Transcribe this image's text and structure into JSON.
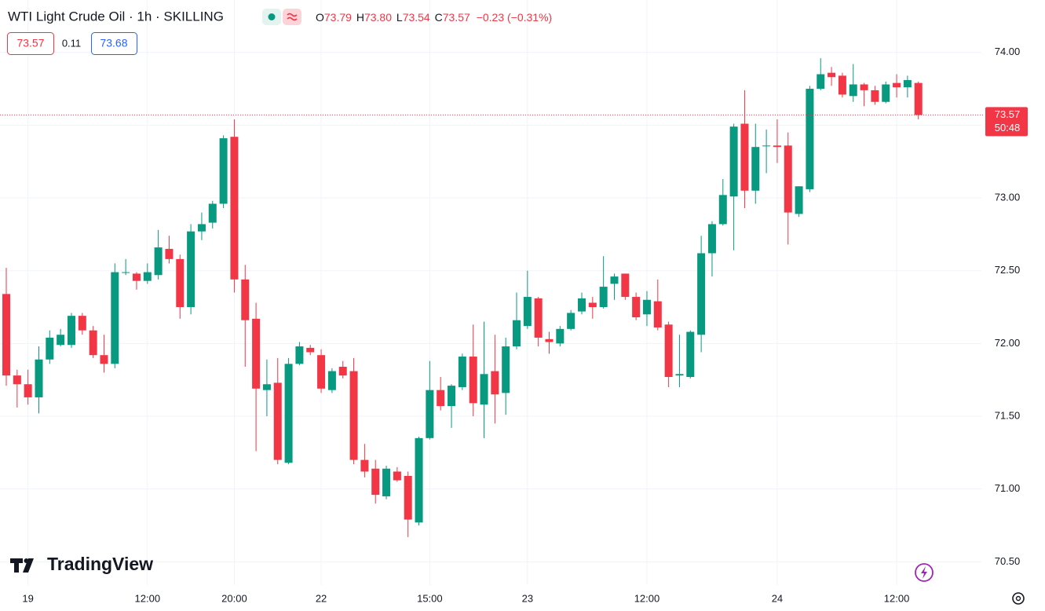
{
  "chart_data": {
    "type": "candlestick",
    "title": "WTI Light Crude Oil · 1h · SKILLING",
    "ohlc_legend": [
      {
        "label": "O",
        "value": "73.79"
      },
      {
        "label": "H",
        "value": "73.80"
      },
      {
        "label": "L",
        "value": "73.54"
      },
      {
        "label": "C",
        "value": "73.57"
      }
    ],
    "change": "−0.23 (−0.31%)",
    "bid": "73.57",
    "spread": "0.11",
    "ask": "73.68",
    "last_price": 73.57,
    "countdown": "50:48",
    "up_color": "#089981",
    "down_color": "#f23645",
    "categories": [
      null,
      null,
      "19",
      null,
      null,
      null,
      null,
      null,
      null,
      null,
      null,
      null,
      null,
      "12:00",
      null,
      null,
      null,
      null,
      null,
      null,
      null,
      "20:00",
      null,
      null,
      null,
      null,
      null,
      null,
      null,
      "22",
      null,
      null,
      null,
      null,
      null,
      null,
      null,
      null,
      null,
      "15:00",
      null,
      null,
      null,
      null,
      null,
      null,
      null,
      null,
      "23",
      null,
      null,
      null,
      null,
      null,
      null,
      null,
      null,
      null,
      null,
      "12:00",
      null,
      null,
      null,
      null,
      null,
      null,
      null,
      null,
      null,
      null,
      null,
      "24",
      null,
      null,
      null,
      null,
      null,
      null,
      null,
      null,
      null,
      null,
      "12:00",
      null,
      null
    ],
    "open": [
      72.34,
      71.78,
      71.72,
      71.63,
      71.89,
      71.99,
      71.99,
      72.19,
      72.09,
      71.92,
      71.86,
      72.49,
      72.48,
      72.43,
      72.47,
      72.65,
      72.58,
      72.25,
      72.77,
      72.83,
      72.96,
      73.42,
      72.44,
      72.17,
      71.68,
      71.73,
      71.18,
      71.86,
      71.97,
      71.92,
      71.68,
      71.84,
      71.81,
      71.2,
      71.14,
      70.95,
      71.12,
      71.09,
      70.77,
      71.35,
      71.68,
      71.57,
      71.7,
      71.91,
      71.58,
      71.81,
      71.66,
      71.98,
      72.12,
      72.31,
      72.03,
      72.0,
      72.1,
      72.22,
      72.28,
      72.25,
      72.41,
      72.48,
      72.32,
      72.2,
      72.29,
      72.13,
      71.78,
      71.77,
      72.06,
      72.62,
      72.82,
      73.01,
      73.51,
      73.05,
      73.36,
      73.36,
      73.36,
      72.89,
      73.06,
      73.75,
      73.86,
      73.84,
      73.7,
      73.78,
      73.74,
      73.66,
      73.79,
      73.76,
      73.79
    ],
    "high": [
      72.52,
      71.82,
      71.82,
      71.98,
      72.09,
      72.1,
      72.21,
      72.21,
      72.12,
      72.06,
      72.55,
      72.58,
      72.49,
      72.55,
      72.78,
      72.74,
      72.61,
      72.82,
      72.9,
      72.98,
      73.43,
      73.54,
      72.54,
      72.28,
      71.89,
      71.9,
      71.9,
      72.01,
      71.99,
      71.96,
      71.83,
      71.88,
      71.9,
      71.31,
      71.2,
      71.16,
      71.15,
      71.12,
      71.36,
      71.88,
      71.77,
      71.72,
      71.93,
      72.13,
      72.15,
      72.06,
      72.04,
      72.35,
      72.5,
      72.32,
      72.08,
      72.12,
      72.23,
      72.35,
      72.32,
      72.6,
      72.48,
      72.48,
      72.35,
      72.36,
      72.44,
      72.15,
      72.06,
      72.09,
      72.74,
      72.84,
      73.13,
      73.51,
      73.74,
      73.51,
      73.47,
      73.54,
      73.45,
      73.08,
      73.77,
      73.96,
      73.9,
      73.86,
      73.92,
      73.79,
      73.77,
      73.8,
      73.85,
      73.84,
      73.8
    ],
    "low": [
      71.71,
      71.56,
      71.58,
      71.52,
      71.86,
      71.98,
      71.97,
      72.06,
      71.9,
      71.8,
      71.83,
      72.47,
      72.37,
      72.41,
      72.44,
      72.55,
      72.17,
      72.2,
      72.71,
      72.79,
      72.93,
      72.35,
      71.84,
      71.26,
      71.5,
      71.17,
      71.17,
      71.85,
      71.92,
      71.66,
      71.66,
      71.76,
      71.17,
      71.08,
      70.9,
      70.93,
      71.05,
      70.67,
      70.75,
      71.34,
      71.54,
      71.42,
      71.68,
      71.5,
      71.35,
      71.45,
      71.51,
      71.96,
      72.1,
      71.98,
      71.93,
      71.98,
      72.09,
      72.2,
      72.17,
      72.24,
      72.3,
      72.3,
      72.16,
      72.12,
      72.09,
      71.7,
      71.7,
      71.76,
      71.94,
      72.46,
      72.81,
      72.64,
      72.93,
      72.96,
      73.17,
      73.24,
      72.68,
      72.87,
      73.04,
      73.74,
      73.77,
      73.69,
      73.66,
      73.63,
      73.64,
      73.65,
      73.69,
      73.69,
      73.54
    ],
    "close": [
      71.78,
      71.72,
      71.63,
      71.89,
      72.04,
      72.06,
      72.19,
      72.09,
      71.92,
      71.86,
      72.49,
      72.49,
      72.43,
      72.49,
      72.66,
      72.58,
      72.25,
      72.77,
      72.82,
      72.96,
      73.41,
      72.44,
      72.16,
      71.69,
      71.72,
      71.2,
      71.86,
      71.98,
      71.94,
      71.69,
      71.81,
      71.78,
      71.2,
      71.12,
      70.96,
      71.14,
      71.06,
      70.79,
      71.35,
      71.68,
      71.57,
      71.71,
      71.91,
      71.59,
      71.79,
      71.65,
      71.98,
      72.16,
      72.32,
      72.04,
      72.01,
      72.1,
      72.21,
      72.31,
      72.25,
      72.39,
      72.46,
      72.32,
      72.18,
      72.3,
      72.11,
      71.77,
      71.79,
      72.08,
      72.62,
      72.82,
      73.02,
      73.49,
      73.05,
      73.35,
      73.36,
      73.35,
      72.9,
      73.08,
      73.75,
      73.85,
      73.83,
      73.71,
      73.78,
      73.74,
      73.66,
      73.78,
      73.76,
      73.81,
      73.57
    ],
    "ylim": [
      70.34,
      74.36
    ],
    "yticks": [
      {
        "value": 70.5,
        "label": "70.50"
      },
      {
        "value": 71,
        "label": "71.00"
      },
      {
        "value": 71.5,
        "label": "71.50"
      },
      {
        "value": 72,
        "label": "72.00"
      },
      {
        "value": 72.5,
        "label": "72.50"
      },
      {
        "value": 73,
        "label": "73.00"
      },
      {
        "value": 73.5,
        "label": "73.50"
      },
      {
        "value": 74,
        "label": "74.00"
      }
    ],
    "grid": true,
    "brand": "TradingView"
  }
}
